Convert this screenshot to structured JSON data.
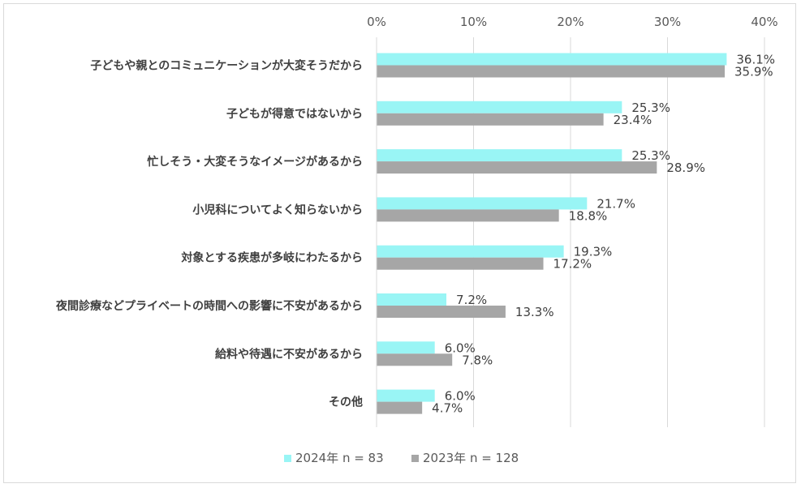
{
  "chart_data": {
    "type": "bar",
    "orientation": "horizontal",
    "categories": [
      "子どもや親とのコミュニケーションが大変そうだから",
      "子どもが得意ではないから",
      "忙しそう・大変そうなイメージがあるから",
      "小児科についてよく知らないから",
      "対象とする疾患が多岐にわたるから",
      "夜間診療などプライベートの時間への影響に不安があるから",
      "給料や待遇に不安があるから",
      "その他"
    ],
    "series": [
      {
        "name": "2024年 n = 83",
        "color": "#99f5f5",
        "values": [
          36.1,
          25.3,
          25.3,
          21.7,
          19.3,
          7.2,
          6.0,
          6.0
        ],
        "labels": [
          "36.1%",
          "25.3%",
          "25.3%",
          "21.7%",
          "19.3%",
          "7.2%",
          "6.0%",
          "6.0%"
        ]
      },
      {
        "name": "2023年 n = 128",
        "color": "#a6a6a6",
        "values": [
          35.9,
          23.4,
          28.9,
          18.8,
          17.2,
          13.3,
          7.8,
          4.7
        ],
        "labels": [
          "35.9%",
          "23.4%",
          "28.9%",
          "18.8%",
          "17.2%",
          "13.3%",
          "7.8%",
          "4.7%"
        ]
      }
    ],
    "xlim": [
      0,
      40
    ],
    "xticks": [
      0,
      10,
      20,
      30,
      40
    ],
    "xtick_labels": [
      "0%",
      "10%",
      "20%",
      "30%",
      "40%"
    ],
    "axis_position": "top",
    "grid": true,
    "legend_position": "bottom"
  }
}
